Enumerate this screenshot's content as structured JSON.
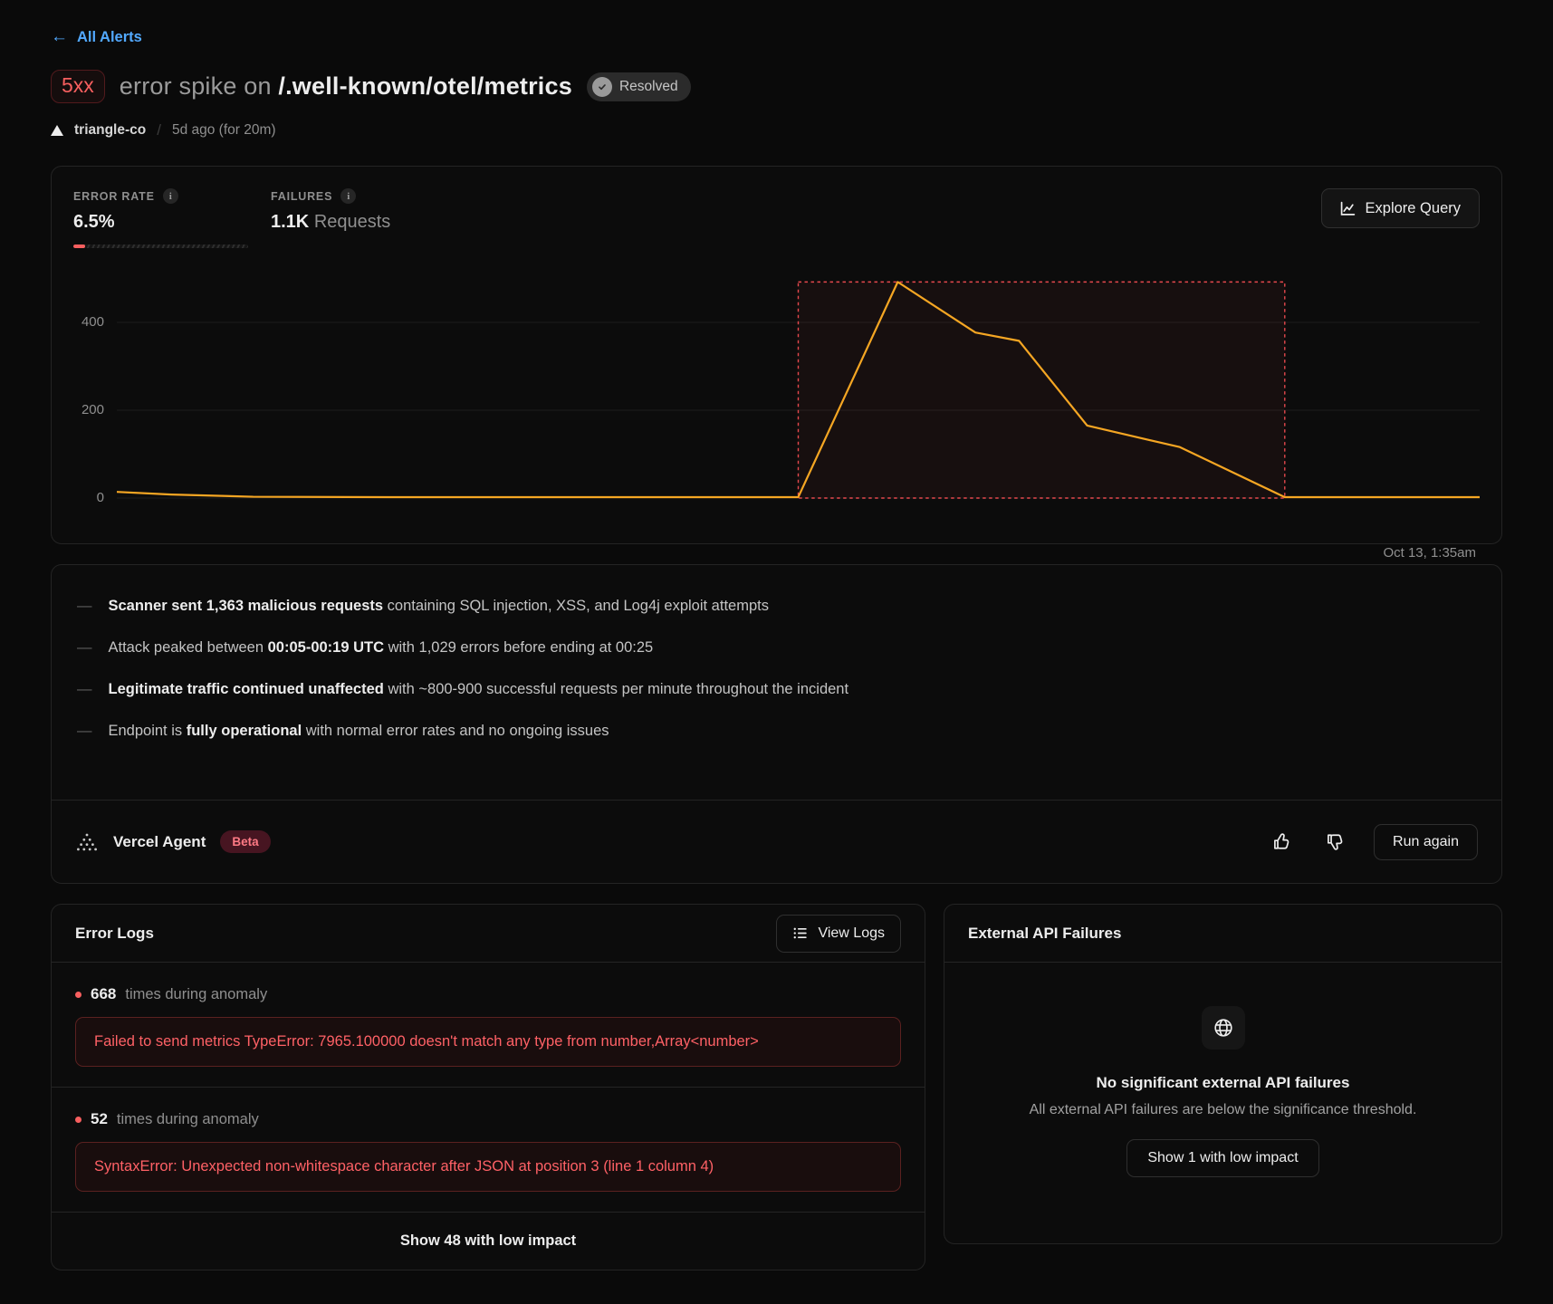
{
  "colors": {
    "accent_blue": "#52a9ff",
    "line_orange": "#f5a623",
    "alert_red": "#f75f5f",
    "anomaly_red": "#e5484d"
  },
  "header": {
    "back": "All Alerts",
    "badge": "5xx",
    "title_prefix": "error spike on",
    "title_path": "/.well-known/otel/metrics",
    "status": "Resolved",
    "team": "triangle-co",
    "separator": "/",
    "time": "5d ago (for 20m)"
  },
  "metrics": {
    "error_rate_label": "ERROR RATE",
    "error_rate_value": "6.5%",
    "failures_label": "FAILURES",
    "failures_value": "1.1K",
    "failures_unit": "Requests",
    "explore_button": "Explore Query"
  },
  "chart_data": {
    "type": "line",
    "series": [
      {
        "name": "5xx errors",
        "color": "#f5a623",
        "points": [
          [
            0,
            14
          ],
          [
            0.04,
            8
          ],
          [
            0.1,
            3
          ],
          [
            0.2,
            2
          ],
          [
            0.3,
            2
          ],
          [
            0.4,
            2
          ],
          [
            0.5,
            2
          ],
          [
            0.573,
            492
          ],
          [
            0.63,
            377
          ],
          [
            0.662,
            358
          ],
          [
            0.712,
            165
          ],
          [
            0.78,
            116
          ],
          [
            0.857,
            2
          ],
          [
            0.93,
            2
          ],
          [
            1,
            2
          ]
        ]
      }
    ],
    "yticks": [
      0,
      200,
      400
    ],
    "ylim": [
      0,
      520
    ],
    "grid": true,
    "anomaly_window": {
      "x0": 0.5,
      "x1": 0.857,
      "y0": 0,
      "y1": 492,
      "color": "#e5484d"
    },
    "x_end_label": "Oct 13, 1:35am"
  },
  "summary": {
    "dash": "—",
    "bullets": [
      [
        {
          "text": "Scanner sent 1,363 malicious requests",
          "bold": true
        },
        {
          "text": " containing SQL injection, XSS, and Log4j exploit attempts",
          "bold": false
        }
      ],
      [
        {
          "text": "Attack peaked between ",
          "bold": false
        },
        {
          "text": "00:05-00:19 UTC",
          "bold": true
        },
        {
          "text": " with 1,029 errors before ending at 00:25",
          "bold": false
        }
      ],
      [
        {
          "text": "Legitimate traffic continued unaffected",
          "bold": true
        },
        {
          "text": " with ~800-900 successful requests per minute throughout the incident",
          "bold": false
        }
      ],
      [
        {
          "text": "Endpoint is ",
          "bold": false
        },
        {
          "text": "fully operational",
          "bold": true
        },
        {
          "text": " with normal error rates and no ongoing issues",
          "bold": false
        }
      ]
    ]
  },
  "agent": {
    "name": "Vercel Agent",
    "badge": "Beta",
    "run_again": "Run again"
  },
  "error_logs": {
    "title": "Error Logs",
    "view_logs": "View Logs",
    "entries": [
      {
        "count": "668",
        "suffix": "times during anomaly",
        "message": "Failed to send metrics TypeError: 7965.100000 doesn't match any type from number,Array<number>"
      },
      {
        "count": "52",
        "suffix": "times during anomaly",
        "message": "SyntaxError: Unexpected non-whitespace character after JSON at position 3 (line 1 column 4)"
      }
    ],
    "footer": "Show 48 with low impact"
  },
  "external_api": {
    "title": "External API Failures",
    "empty_title": "No significant external API failures",
    "empty_desc": "All external API failures are below the significance threshold.",
    "button": "Show 1 with low impact"
  }
}
